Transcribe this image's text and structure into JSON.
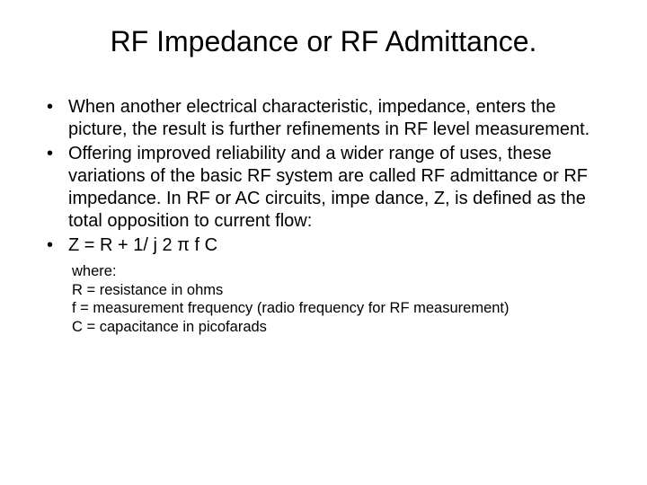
{
  "title": "RF Impedance or RF Admittance.",
  "bullets": [
    "When another electrical characteristic, impedance, enters the picture, the result is further refinements in RF level measurement.",
    "Offering improved reliability and a wider range of uses, these variations of the basic RF system are called RF admittance or RF impedance. In RF or AC circuits, impe dance, Z, is defined as the total opposition to current flow:",
    "Z = R + 1/ j 2 π f C"
  ],
  "definitions": [
    "where:",
    "R = resistance in ohms",
    "f = measurement frequency (radio frequency for RF measurement)",
    "C = capacitance in picofarads"
  ],
  "style": {
    "background_color": "#ffffff",
    "text_color": "#000000",
    "title_fontsize": 32,
    "bullet_fontsize": 20,
    "def_fontsize": 16.5,
    "font_family": "Arial"
  }
}
